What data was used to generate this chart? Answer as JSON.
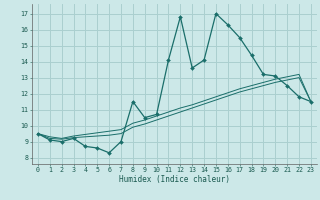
{
  "xlabel": "Humidex (Indice chaleur)",
  "bg_color": "#cce8e8",
  "grid_color": "#aacfcf",
  "line_color": "#1a6e6a",
  "x_ticks": [
    0,
    1,
    2,
    3,
    4,
    5,
    6,
    7,
    8,
    9,
    10,
    11,
    12,
    13,
    14,
    15,
    16,
    17,
    18,
    19,
    20,
    21,
    22,
    23
  ],
  "y_ticks": [
    8,
    9,
    10,
    11,
    12,
    13,
    14,
    15,
    16,
    17
  ],
  "ylim": [
    7.6,
    17.6
  ],
  "xlim": [
    -0.5,
    23.5
  ],
  "main_curve": [
    9.5,
    9.1,
    9.0,
    9.2,
    8.7,
    8.6,
    8.3,
    9.0,
    11.5,
    10.5,
    10.7,
    14.1,
    16.8,
    13.6,
    14.1,
    17.0,
    16.3,
    15.5,
    14.4,
    13.2,
    13.1,
    12.5,
    11.8,
    11.5
  ],
  "line2": [
    9.5,
    9.2,
    9.15,
    9.25,
    9.3,
    9.35,
    9.4,
    9.5,
    9.9,
    10.1,
    10.35,
    10.6,
    10.85,
    11.1,
    11.35,
    11.6,
    11.85,
    12.1,
    12.3,
    12.5,
    12.7,
    12.85,
    13.0,
    11.5
  ],
  "line3": [
    9.5,
    9.3,
    9.2,
    9.35,
    9.45,
    9.55,
    9.65,
    9.75,
    10.15,
    10.35,
    10.6,
    10.85,
    11.1,
    11.3,
    11.55,
    11.8,
    12.05,
    12.3,
    12.5,
    12.7,
    12.9,
    13.05,
    13.2,
    11.5
  ]
}
